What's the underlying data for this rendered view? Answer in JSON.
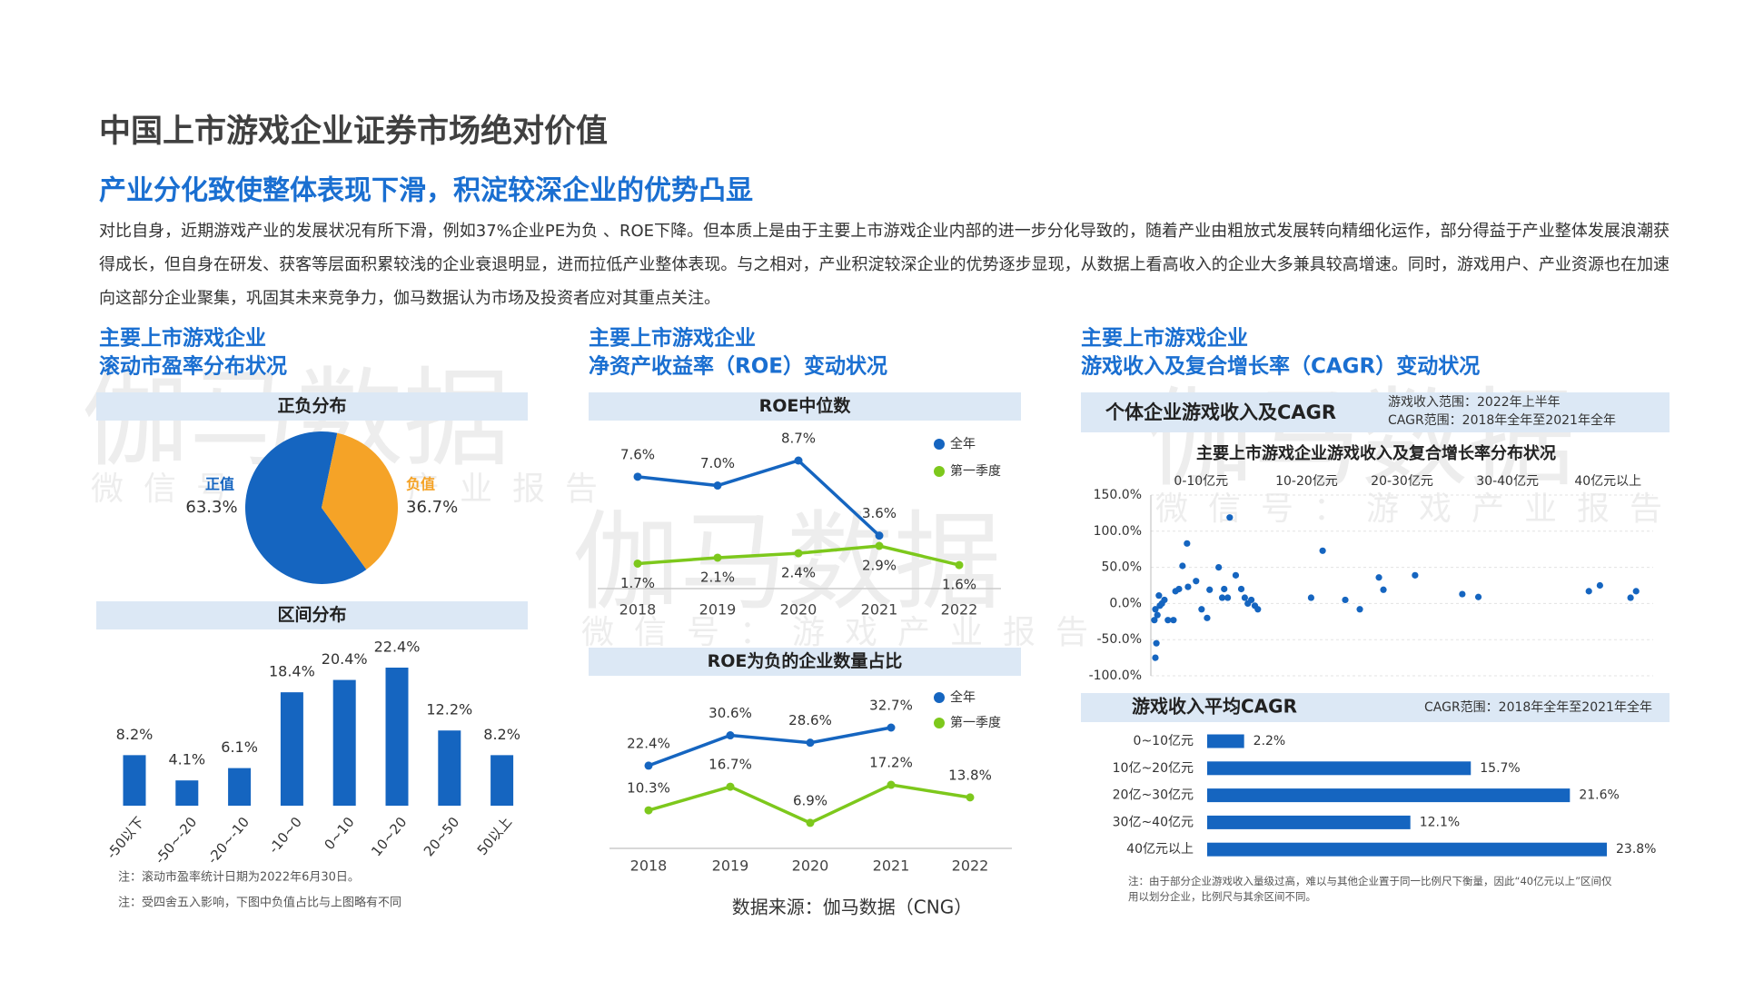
{
  "title": "中国上市游戏企业证券市场绝对价值",
  "subtitle": "产业分化致使整体表现下滑，积淀较深企业的优势凸显",
  "body": "对比自身，近期游戏产业的发展状况有所下滑，例如37%企业PE为负 、ROE下降。但本质上是由于主要上市游戏企业内部的进一步分化导致的，随着产业由粗放式发展转向精细化运作，部分得益于产业整体发展浪潮获得成长，但自身在研发、获客等层面积累较浅的企业衰退明显，进而拉低产业整体表现。与之相对，产业积淀较深企业的优势逐步显现，从数据上看高收入的企业大多兼具较高增速。同时，游戏用户、产业资源也在加速向这部分企业聚集，巩固其未来竞争力，伽马数据认为市场及投资者应对其重点关注。",
  "panels": [
    {
      "heading": [
        "主要上市游戏企业",
        "滚动市盈率分布状况"
      ],
      "notes": [
        "注：滚动市盈率统计日期为2022年6月30日。",
        "注：受四舍五入影响，下图中负值占比与上图略有不同"
      ]
    },
    {
      "heading": [
        "主要上市游戏企业",
        "净资产收益率（ROE）变动状况"
      ]
    },
    {
      "heading": [
        "主要上市游戏企业",
        "游戏收入及复合增长率（CAGR）变动状况"
      ],
      "note": "注：由于部分企业游戏收入量级过高，难以与其他企业置于同一比例尺下衡量，因此“40亿元以上”区间仅用以划分企业，比例尺与其余区间不同。"
    }
  ],
  "source": "数据来源：伽马数据（CNG）",
  "watermark": {
    "logo": "伽马数据",
    "sub": "微信号：游戏产业报告"
  },
  "chart_data": [
    {
      "type": "pie",
      "title": "正负分布",
      "categories": [
        "正值",
        "负值"
      ],
      "values": [
        63.3,
        36.7
      ],
      "value_labels": [
        "63.3%",
        "36.7%"
      ],
      "colors": [
        "#1565c0",
        "#f5a327"
      ]
    },
    {
      "type": "bar",
      "title": "区间分布",
      "categories": [
        "-50以下",
        "-50~-20",
        "-20~-10",
        "-10~0",
        "0~10",
        "10~20",
        "20~50",
        "50以上"
      ],
      "values": [
        8.2,
        4.1,
        6.1,
        18.4,
        20.4,
        22.4,
        12.2,
        8.2
      ],
      "value_labels": [
        "8.2%",
        "4.1%",
        "6.1%",
        "18.4%",
        "20.4%",
        "22.4%",
        "12.2%",
        "8.2%"
      ],
      "color": "#1565c0"
    },
    {
      "type": "line",
      "title": "ROE中位数",
      "categories": [
        "2018",
        "2019",
        "2020",
        "2021",
        "2022"
      ],
      "series": [
        {
          "name": "全年",
          "color": "#1565c0",
          "values": [
            7.6,
            7.0,
            8.7,
            3.6,
            null
          ],
          "value_labels": [
            "7.6%",
            "7.0%",
            "8.7%",
            "3.6%",
            null
          ]
        },
        {
          "name": "第一季度",
          "color": "#7dc81c",
          "values": [
            1.7,
            2.1,
            2.4,
            2.9,
            1.6
          ],
          "value_labels": [
            "1.7%",
            "2.1%",
            "2.4%",
            "2.9%",
            "1.6%"
          ]
        }
      ]
    },
    {
      "type": "line",
      "title": "ROE为负的企业数量占比",
      "categories": [
        "2018",
        "2019",
        "2020",
        "2021",
        "2022"
      ],
      "series": [
        {
          "name": "全年",
          "color": "#1565c0",
          "values": [
            22.4,
            30.6,
            28.6,
            32.7,
            null
          ],
          "value_labels": [
            "22.4%",
            "30.6%",
            "28.6%",
            "32.7%",
            null
          ]
        },
        {
          "name": "第一季度",
          "color": "#7dc81c",
          "values": [
            10.3,
            16.7,
            6.9,
            17.2,
            13.8
          ],
          "value_labels": [
            "10.3%",
            "16.7%",
            "6.9%",
            "17.2%",
            "13.8%"
          ]
        }
      ]
    },
    {
      "type": "scatter",
      "panel_title": "个体企业游戏收入及CAGR",
      "range_notes": [
        "游戏收入范围：2022年上半年",
        "CAGR范围：2018年全年至2021年全年"
      ],
      "title": "主要上市游戏企业游戏收入及复合增长率分布状况",
      "color": "#1565c0",
      "grid": true,
      "x": [
        0.9,
        1.1,
        0.7,
        1.3,
        0.9,
        1.8,
        2.2,
        2.7,
        1.6,
        3.4,
        4.5,
        4.9,
        5.6,
        7.2,
        7.4,
        6.3,
        9.0,
        10.1,
        11.2,
        11.7,
        13.5,
        14.6,
        15.3,
        15.7,
        16.9,
        18.0,
        18.7,
        19.3,
        20.0,
        20.7,
        21.3,
        14.2,
        31.9,
        34.2,
        38.7,
        41.6,
        45.4,
        46.3,
        52.6,
        62.0,
        65.2,
        87.2,
        89.4,
        95.5,
        96.6
      ],
      "values": [
        -75,
        -55,
        -23,
        -16,
        -8,
        -3,
        0,
        5,
        11,
        -23,
        -23,
        17,
        20,
        83,
        23,
        52,
        31,
        -8,
        -20,
        19,
        50,
        20,
        8,
        119,
        39,
        20,
        8,
        0,
        5,
        -3,
        -8,
        8,
        8,
        73,
        5,
        -8,
        36,
        19,
        39,
        13,
        9,
        17,
        25,
        8,
        17
      ],
      "xlim": [
        0,
        100
      ],
      "xticks": [
        {
          "value": 10,
          "label": "0-10亿元"
        },
        {
          "value": 31,
          "label": "10-20亿元"
        },
        {
          "value": 50,
          "label": "20-30亿元"
        },
        {
          "value": 71,
          "label": "30-40亿元"
        },
        {
          "value": 91,
          "label": "40亿元以上"
        }
      ],
      "ylim": [
        -100,
        150
      ],
      "yticks": [
        {
          "value": 150,
          "label": "150.0%"
        },
        {
          "value": 100,
          "label": "100.0%"
        },
        {
          "value": 50,
          "label": "50.0%"
        },
        {
          "value": 0,
          "label": "0.0%"
        },
        {
          "value": -50,
          "label": "-50.0%"
        },
        {
          "value": -100,
          "label": "-100.0%"
        }
      ]
    },
    {
      "type": "hbar",
      "title": "游戏收入平均CAGR",
      "range_note": "CAGR范围：2018年全年至2021年全年",
      "categories": [
        "0~10亿元",
        "10亿~20亿元",
        "20亿~30亿元",
        "30亿~40亿元",
        "40亿元以上"
      ],
      "values": [
        2.2,
        15.7,
        21.6,
        12.1,
        23.8
      ],
      "value_labels": [
        "2.2%",
        "15.7%",
        "21.6%",
        "12.1%",
        "23.8%"
      ],
      "color": "#1565c0"
    }
  ]
}
